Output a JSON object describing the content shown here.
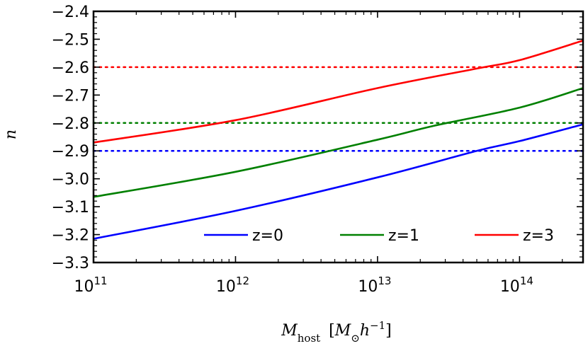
{
  "chart_data": {
    "type": "line",
    "xscale": "log",
    "xlabel": "M_host [M_⊙ h^-1]",
    "ylabel": "n",
    "xlim": [
      100000000000.0,
      280000000000000.0
    ],
    "ylim": [
      -3.3,
      -2.4
    ],
    "yticks": [
      -3.3,
      -3.2,
      -3.1,
      -3.0,
      -2.9,
      -2.8,
      -2.7,
      -2.6,
      -2.5,
      -2.4
    ],
    "ytick_labels": [
      "−3.3",
      "−3.2",
      "−3.1",
      "−3.0",
      "−2.9",
      "−2.8",
      "−2.7",
      "−2.6",
      "−2.5",
      "−2.4"
    ],
    "xticks": [
      {
        "value": 100000000000.0,
        "base": "10",
        "exp": "11"
      },
      {
        "value": 1000000000000.0,
        "base": "10",
        "exp": "12"
      },
      {
        "value": 10000000000000.0,
        "base": "10",
        "exp": "13"
      },
      {
        "value": 100000000000000.0,
        "base": "10",
        "exp": "14"
      }
    ],
    "series": [
      {
        "name": "z=0",
        "color": "#0000ff",
        "points": [
          [
            100000000000.0,
            -3.215
          ],
          [
            1000000000000.0,
            -3.115
          ],
          [
            10000000000000.0,
            -2.995
          ],
          [
            50000000000000.0,
            -2.9
          ],
          [
            100000000000000.0,
            -2.865
          ],
          [
            280000000000000.0,
            -2.805
          ]
        ]
      },
      {
        "name": "z=1",
        "color": "#008000",
        "points": [
          [
            100000000000.0,
            -3.065
          ],
          [
            1000000000000.0,
            -2.975
          ],
          [
            10000000000000.0,
            -2.86
          ],
          [
            25000000000000.0,
            -2.81
          ],
          [
            100000000000000.0,
            -2.745
          ],
          [
            280000000000000.0,
            -2.675
          ]
        ]
      },
      {
        "name": "z=3",
        "color": "#ff0000",
        "points": [
          [
            100000000000.0,
            -2.87
          ],
          [
            1000000000000.0,
            -2.79
          ],
          [
            10000000000000.0,
            -2.675
          ],
          [
            50000000000000.0,
            -2.605
          ],
          [
            100000000000000.0,
            -2.575
          ],
          [
            280000000000000.0,
            -2.505
          ]
        ]
      }
    ],
    "hlines": [
      {
        "name": "z=0 reference",
        "y": -2.9,
        "color": "#0000ff",
        "style": "dotted"
      },
      {
        "name": "z=1 reference",
        "y": -2.8,
        "color": "#008000",
        "style": "dotted"
      },
      {
        "name": "z=3 reference",
        "y": -2.6,
        "color": "#ff0000",
        "style": "dotted"
      }
    ],
    "legend": {
      "placement": "bottom-right",
      "entries": [
        {
          "label": "z=0",
          "color": "#0000ff"
        },
        {
          "label": "z=1",
          "color": "#008000"
        },
        {
          "label": "z=3",
          "color": "#ff0000"
        }
      ]
    }
  }
}
